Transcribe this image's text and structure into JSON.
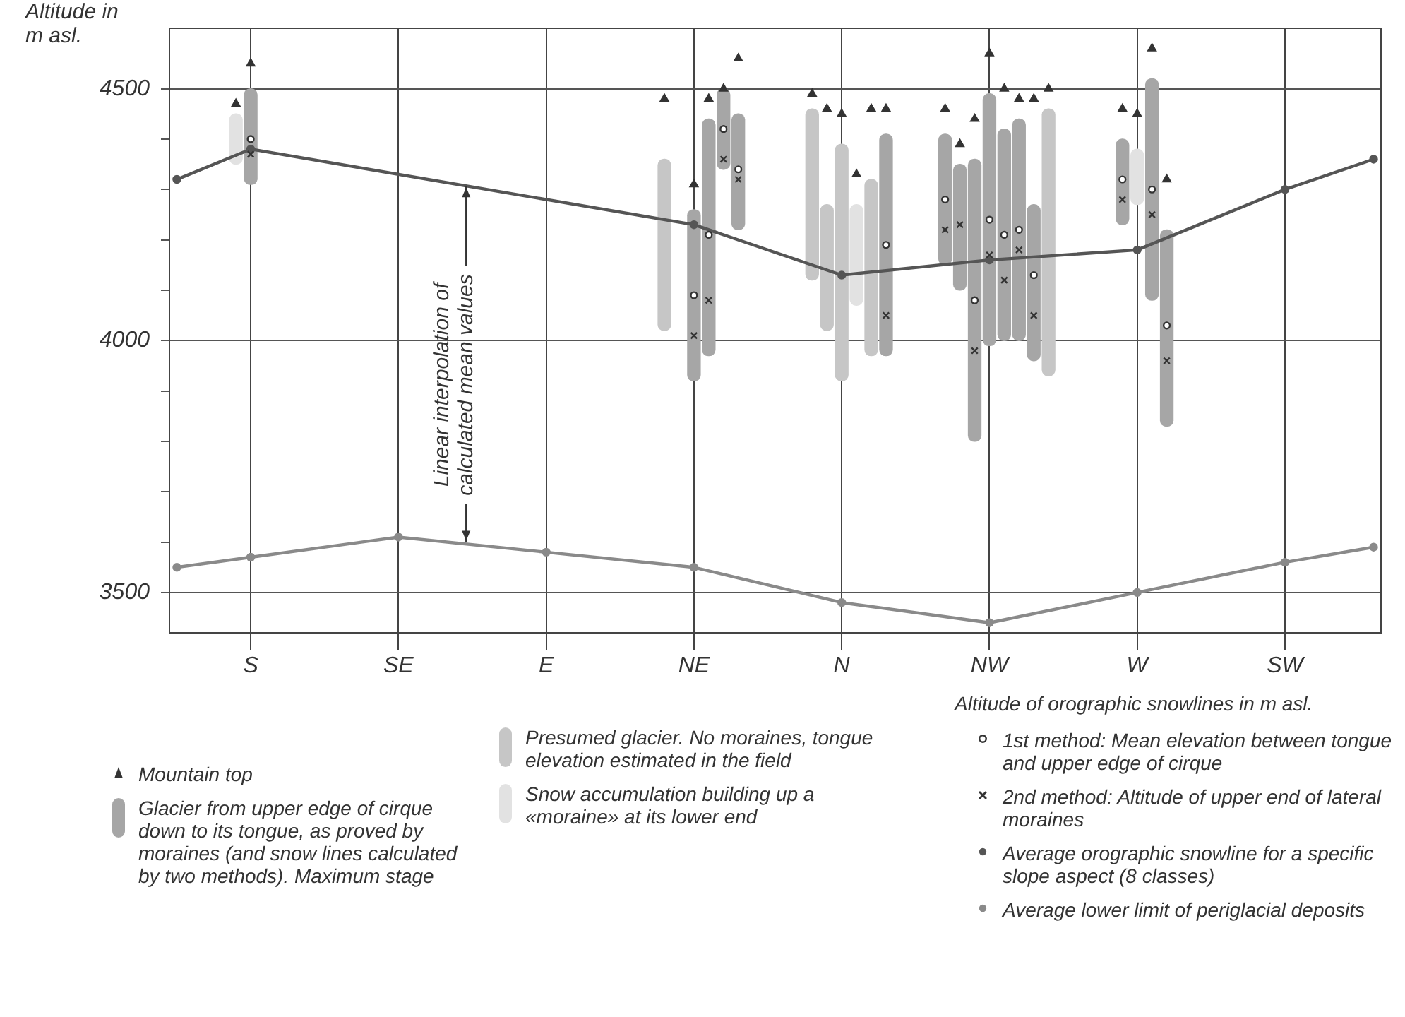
{
  "chart_data": {
    "type": "bar",
    "ylabel": "Altitude in m asl.",
    "legend_title": "Altitude of orographic snowlines in m asl.",
    "categories": [
      null,
      null,
      null,
      null,
      null,
      "S",
      null,
      null,
      null,
      null,
      null,
      null,
      null,
      null,
      null,
      "SE",
      null,
      null,
      null,
      null,
      null,
      null,
      null,
      null,
      null,
      "E",
      null,
      null,
      null,
      null,
      null,
      null,
      null,
      null,
      null,
      "NE",
      null,
      null,
      null,
      null,
      null,
      null,
      null,
      null,
      null,
      "N",
      null,
      null,
      null,
      null,
      null,
      null,
      null,
      null,
      null,
      "NW",
      null,
      null,
      null,
      null,
      null,
      null,
      null,
      null,
      null,
      "W",
      null,
      null,
      null,
      null,
      null,
      null,
      null,
      null,
      null,
      "SW",
      null,
      null,
      null,
      null,
      null,
      null
    ],
    "ylim": [
      3420,
      4620
    ],
    "yticks": [
      3500,
      {
        "value": 3600,
        "label": null
      },
      {
        "value": 3700,
        "label": null
      },
      {
        "value": 3800,
        "label": null
      },
      {
        "value": 3900,
        "label": null
      },
      4000,
      {
        "value": 4100,
        "label": null
      },
      {
        "value": 4200,
        "label": null
      },
      {
        "value": 4300,
        "label": null
      },
      {
        "value": 4400,
        "label": null
      },
      4500
    ],
    "grid": true,
    "legend": "bottom",
    "annotations": [
      {
        "text": "Linear interpolation of calculated mean values",
        "y": 3600
      }
    ],
    "series": [
      {
        "name": "Mountain top",
        "type": "scatter",
        "marker": "triangle",
        "color": "#333333",
        "values": [
          null,
          null,
          null,
          null,
          4470,
          4550,
          null,
          null,
          null,
          null,
          null,
          null,
          null,
          null,
          null,
          null,
          null,
          null,
          null,
          null,
          null,
          null,
          null,
          null,
          null,
          null,
          null,
          null,
          null,
          null,
          null,
          null,
          null,
          4480,
          null,
          4310,
          4480,
          4500,
          4560,
          null,
          null,
          null,
          null,
          4490,
          4460,
          4450,
          4330,
          4460,
          4460,
          null,
          null,
          null,
          4460,
          4390,
          4440,
          4570,
          4500,
          4480,
          4480,
          4500,
          null,
          null,
          null,
          null,
          4460,
          4450,
          4580,
          4320,
          null,
          null,
          null,
          null,
          null,
          null,
          null,
          null,
          null,
          null,
          null,
          null,
          null,
          null
        ]
      },
      {
        "name": "Glacier from upper edge of cirque down to its tongue, as proved by moraines (and snow lines calculated by two methods). Maximum stage",
        "color": "#a6a6a6",
        "base": [
          null,
          null,
          null,
          null,
          null,
          4310,
          null,
          null,
          null,
          null,
          null,
          null,
          null,
          null,
          null,
          null,
          null,
          null,
          null,
          null,
          null,
          null,
          null,
          null,
          null,
          null,
          null,
          null,
          null,
          null,
          null,
          null,
          null,
          null,
          null,
          3920,
          3970,
          4340,
          4220,
          null,
          null,
          null,
          null,
          null,
          null,
          null,
          null,
          null,
          3970,
          null,
          null,
          null,
          4150,
          4100,
          3800,
          3990,
          4000,
          4000,
          3960,
          null,
          null,
          null,
          null,
          null,
          4230,
          null,
          4080,
          3830,
          null,
          null,
          null,
          null,
          null,
          null,
          null,
          null,
          null,
          null,
          null,
          null,
          null,
          null
        ],
        "values": [
          null,
          null,
          null,
          null,
          null,
          190,
          null,
          null,
          null,
          null,
          null,
          null,
          null,
          null,
          null,
          null,
          null,
          null,
          null,
          null,
          null,
          null,
          null,
          null,
          null,
          null,
          null,
          null,
          null,
          null,
          null,
          null,
          null,
          null,
          null,
          340,
          470,
          160,
          230,
          null,
          null,
          null,
          null,
          null,
          null,
          null,
          null,
          null,
          440,
          null,
          null,
          null,
          260,
          250,
          560,
          500,
          420,
          440,
          310,
          null,
          null,
          null,
          null,
          null,
          170,
          null,
          440,
          390,
          null,
          null,
          null,
          null,
          null,
          null,
          null,
          null,
          null,
          null,
          null,
          null,
          null,
          null
        ]
      },
      {
        "name": "Presumed glacier. No moraines, tongue elevation estimated in the field",
        "color": "#c6c6c6",
        "base": [
          null,
          null,
          null,
          null,
          null,
          null,
          null,
          null,
          null,
          null,
          null,
          null,
          null,
          null,
          null,
          null,
          null,
          null,
          null,
          null,
          null,
          null,
          null,
          null,
          null,
          null,
          null,
          null,
          null,
          null,
          null,
          null,
          null,
          4020,
          null,
          null,
          null,
          null,
          null,
          null,
          null,
          null,
          null,
          4120,
          4020,
          3920,
          null,
          3970,
          null,
          null,
          null,
          null,
          null,
          null,
          null,
          null,
          null,
          null,
          null,
          3930,
          null,
          null,
          null,
          null,
          null,
          null,
          null,
          null,
          null,
          null,
          null,
          null,
          null,
          null,
          null,
          null,
          null,
          null,
          null,
          null,
          null,
          null
        ],
        "values": [
          null,
          null,
          null,
          null,
          null,
          null,
          null,
          null,
          null,
          null,
          null,
          null,
          null,
          null,
          null,
          null,
          null,
          null,
          null,
          null,
          null,
          null,
          null,
          null,
          null,
          null,
          null,
          null,
          null,
          null,
          null,
          null,
          null,
          340,
          null,
          null,
          null,
          null,
          null,
          null,
          null,
          null,
          null,
          340,
          250,
          470,
          null,
          350,
          null,
          null,
          null,
          null,
          null,
          null,
          null,
          null,
          null,
          null,
          null,
          530,
          null,
          null,
          null,
          null,
          null,
          null,
          null,
          null,
          null,
          null,
          null,
          null,
          null,
          null,
          null,
          null,
          null,
          null,
          null,
          null,
          null,
          null
        ]
      },
      {
        "name": "Snow accumulation building up a «moraine» at its lower end",
        "color": "#e2e2e2",
        "base": [
          null,
          null,
          null,
          null,
          4350,
          null,
          null,
          null,
          null,
          null,
          null,
          null,
          null,
          null,
          null,
          null,
          null,
          null,
          null,
          null,
          null,
          null,
          null,
          null,
          null,
          null,
          null,
          null,
          null,
          null,
          null,
          null,
          null,
          null,
          null,
          null,
          null,
          null,
          null,
          null,
          null,
          null,
          null,
          null,
          null,
          null,
          4070,
          null,
          null,
          null,
          null,
          null,
          null,
          null,
          null,
          null,
          null,
          null,
          null,
          null,
          null,
          null,
          null,
          null,
          null,
          4270,
          null,
          null,
          null,
          null,
          null,
          null,
          null,
          null,
          null,
          null,
          null,
          null,
          null,
          null,
          null,
          null
        ],
        "values": [
          null,
          null,
          null,
          null,
          100,
          null,
          null,
          null,
          null,
          null,
          null,
          null,
          null,
          null,
          null,
          null,
          null,
          null,
          null,
          null,
          null,
          null,
          null,
          null,
          null,
          null,
          null,
          null,
          null,
          null,
          null,
          null,
          null,
          null,
          null,
          null,
          null,
          null,
          null,
          null,
          null,
          null,
          null,
          null,
          null,
          null,
          200,
          null,
          null,
          null,
          null,
          null,
          null,
          null,
          null,
          null,
          null,
          null,
          null,
          null,
          null,
          null,
          null,
          null,
          null,
          110,
          null,
          null,
          null,
          null,
          null,
          null,
          null,
          null,
          null,
          null,
          null,
          null,
          null,
          null,
          null,
          null
        ]
      },
      {
        "name": "1st method: Mean elevation between tongue and upper edge of cirque",
        "type": "scatter",
        "marker": "circle",
        "color": "#333333",
        "values": [
          null,
          null,
          null,
          null,
          null,
          4400,
          null,
          null,
          null,
          null,
          null,
          null,
          null,
          null,
          null,
          null,
          null,
          null,
          null,
          null,
          null,
          null,
          null,
          null,
          null,
          null,
          null,
          null,
          null,
          null,
          null,
          null,
          null,
          null,
          null,
          4090,
          4210,
          4420,
          4340,
          null,
          null,
          null,
          null,
          null,
          null,
          null,
          null,
          null,
          4190,
          null,
          null,
          null,
          4280,
          null,
          4080,
          4240,
          4210,
          4220,
          4130,
          null,
          null,
          null,
          null,
          null,
          4320,
          null,
          4300,
          4030,
          null,
          null,
          null,
          null,
          null,
          null,
          null,
          null,
          null,
          null,
          null,
          null,
          null,
          null
        ]
      },
      {
        "name": "2nd method: Altitude of upper end of lateral moraines",
        "type": "scatter",
        "marker": "cross",
        "color": "#333333",
        "values": [
          null,
          null,
          null,
          null,
          null,
          4370,
          null,
          null,
          null,
          null,
          null,
          null,
          null,
          null,
          null,
          null,
          null,
          null,
          null,
          null,
          null,
          null,
          null,
          null,
          null,
          null,
          null,
          null,
          null,
          null,
          null,
          null,
          null,
          null,
          null,
          4010,
          4080,
          4360,
          4320,
          null,
          null,
          null,
          null,
          null,
          null,
          null,
          null,
          null,
          4050,
          null,
          null,
          null,
          4220,
          4230,
          3980,
          4170,
          4120,
          4180,
          4050,
          null,
          null,
          null,
          null,
          null,
          4280,
          null,
          4250,
          3960,
          null,
          null,
          null,
          null,
          null,
          null,
          null,
          null,
          null,
          null,
          null,
          null,
          null,
          null
        ]
      },
      {
        "name": "Average orographic snowline for a specific slope aspect (8 classes)",
        "type": "line",
        "marker": "circle",
        "line_style": "solid",
        "color": "#555555",
        "values": [
          4320,
          null,
          null,
          null,
          null,
          4380,
          null,
          null,
          null,
          null,
          null,
          null,
          null,
          null,
          null,
          null,
          null,
          null,
          null,
          null,
          null,
          null,
          null,
          null,
          null,
          null,
          null,
          null,
          null,
          null,
          null,
          null,
          null,
          null,
          null,
          4230,
          null,
          null,
          null,
          null,
          null,
          null,
          null,
          null,
          null,
          4130,
          null,
          null,
          null,
          null,
          null,
          null,
          null,
          null,
          null,
          4160,
          null,
          null,
          null,
          null,
          null,
          null,
          null,
          null,
          null,
          4180,
          null,
          null,
          null,
          null,
          null,
          null,
          null,
          null,
          null,
          4300,
          null,
          null,
          null,
          null,
          null,
          4360
        ]
      },
      {
        "name": "Average lower limit of periglacial deposits",
        "type": "line",
        "marker": "circle",
        "line_style": "solid",
        "color": "#8a8a8a",
        "values": [
          3550,
          null,
          null,
          null,
          null,
          3570,
          null,
          null,
          null,
          null,
          null,
          null,
          null,
          null,
          null,
          3610,
          null,
          null,
          null,
          null,
          null,
          null,
          null,
          null,
          null,
          3580,
          null,
          null,
          null,
          null,
          null,
          null,
          null,
          null,
          null,
          3550,
          null,
          null,
          null,
          null,
          null,
          null,
          null,
          null,
          null,
          3480,
          null,
          null,
          null,
          null,
          null,
          null,
          null,
          null,
          null,
          3440,
          null,
          null,
          null,
          null,
          null,
          null,
          null,
          null,
          null,
          3500,
          null,
          null,
          null,
          null,
          null,
          null,
          null,
          null,
          null,
          3560,
          null,
          null,
          null,
          null,
          null,
          3590
        ]
      }
    ]
  }
}
